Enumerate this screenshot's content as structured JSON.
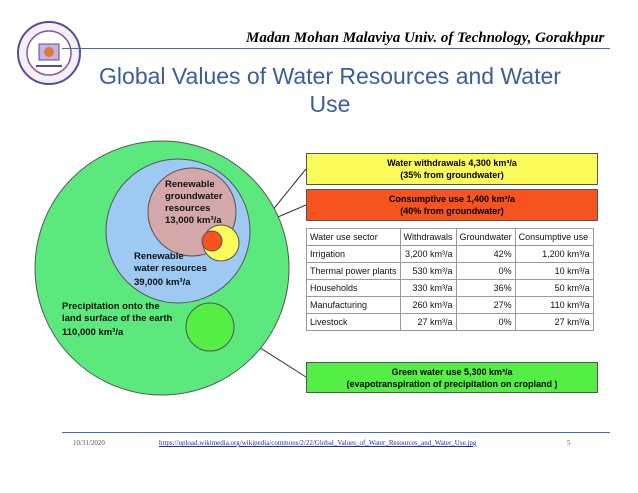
{
  "header": {
    "university": "Madan Mohan Malaviya Univ. of Technology, Gorakhpur"
  },
  "slide": {
    "title": "Global Values of Water Resources and Water Use"
  },
  "diagram": {
    "circles": {
      "precipitation": [
        "Precipitation onto the",
        "land surface of the earth",
        "110,000 km³/a"
      ],
      "renewable_water": [
        "Renewable",
        "water resources",
        "39,000 km³/a"
      ],
      "groundwater": [
        "Renewable",
        "groundwater",
        "resources",
        "13,000 km³/a"
      ]
    },
    "colors": {
      "precipitation": "#5be87c",
      "renewable_water": "#9ec9f3",
      "groundwater": "#d4a8a8",
      "withdrawals": "#fbfb5a",
      "consumptive": "#f7531f",
      "green_water": "#55ee44"
    },
    "withdrawals_box": [
      "Water withdrawals  4,300 km³/a",
      "(35% from groundwater)"
    ],
    "consumptive_box": [
      "Consumptive use  1,400 km³/a",
      "(40% from groundwater)"
    ],
    "green_box": [
      "Green water use  5,300 km³/a",
      "(evapotranspiration of precipitation on cropland )"
    ]
  },
  "table": {
    "headers": [
      "Water use sector",
      "Withdrawals",
      "Groundwater",
      "Consumptive use"
    ],
    "rows": [
      [
        "Irrigation",
        "3,200 km³/a",
        "42%",
        "1,200 km³/a"
      ],
      [
        "Thermal power plants",
        "530 km³/a",
        "0%",
        "10 km³/a"
      ],
      [
        "Households",
        "330 km³/a",
        "36%",
        "50 km³/a"
      ],
      [
        "Manufacturing",
        "260 km³/a",
        "27%",
        "110 km³/a"
      ],
      [
        "Livestock",
        "27 km³/a",
        "0%",
        "27 km³/a"
      ]
    ]
  },
  "footer": {
    "date": "10/31/2020",
    "url": "https://upload.wikimedia.org/wikipedia/commons/2/22/Global_Values_of_Water_Resources_and_Water_Use.jpg",
    "page": "5"
  }
}
